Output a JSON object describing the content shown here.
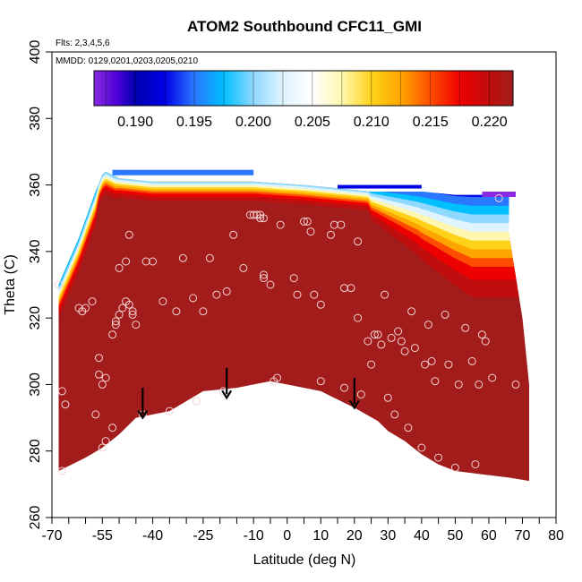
{
  "chart_data": {
    "type": "contour-scatter",
    "title": "ATOM2 Southbound CFC11_GMI",
    "flights_label": "Flts: 2,3,4,5,6",
    "dates_label": "MMDD: 0129,0201,0203,0205,0210",
    "xlabel": "Latitude (deg N)",
    "ylabel": "Theta (C)",
    "xlim": [
      -70,
      80
    ],
    "ylim": [
      260,
      400
    ],
    "x_ticks": [
      -70,
      -55,
      -40,
      -25,
      -10,
      0,
      10,
      20,
      30,
      40,
      50,
      60,
      70,
      80
    ],
    "x_minor_ticks": [
      -65,
      -60,
      -50,
      -45,
      -35,
      -30,
      -20,
      -15,
      -5,
      5,
      15,
      25,
      35,
      45,
      55,
      65,
      75
    ],
    "y_ticks": [
      260,
      280,
      300,
      320,
      340,
      360,
      380,
      400
    ],
    "colorbar": {
      "range": [
        0.1865,
        0.222
      ],
      "ticks": [
        0.19,
        0.195,
        0.2,
        0.205,
        0.21,
        0.215,
        0.22
      ],
      "tick_labels": [
        "0.190",
        "0.195",
        "0.200",
        "0.205",
        "0.210",
        "0.215",
        "0.220"
      ],
      "stops": [
        {
          "v": 0.1865,
          "c": "#8a2be2"
        },
        {
          "v": 0.1885,
          "c": "#4b00d6"
        },
        {
          "v": 0.19,
          "c": "#0000b0"
        },
        {
          "v": 0.1925,
          "c": "#0000e6"
        },
        {
          "v": 0.195,
          "c": "#2a78ff"
        },
        {
          "v": 0.1975,
          "c": "#00bfff"
        },
        {
          "v": 0.2,
          "c": "#8fd8ff"
        },
        {
          "v": 0.2025,
          "c": "#dff4ff"
        },
        {
          "v": 0.205,
          "c": "#ffffff"
        },
        {
          "v": 0.2075,
          "c": "#fff7b0"
        },
        {
          "v": 0.21,
          "c": "#ffd21a"
        },
        {
          "v": 0.2125,
          "c": "#ffa500"
        },
        {
          "v": 0.215,
          "c": "#ff4d00"
        },
        {
          "v": 0.2175,
          "c": "#ee0000"
        },
        {
          "v": 0.22,
          "c": "#c00d0d"
        },
        {
          "v": 0.222,
          "c": "#a21c1c"
        }
      ]
    },
    "field_color": "#a21c1c",
    "field_boundary": {
      "top": [
        [
          -68,
          330
        ],
        [
          -62,
          344
        ],
        [
          -57,
          358
        ],
        [
          -55,
          363
        ],
        [
          -54,
          364
        ],
        [
          -50,
          362
        ],
        [
          -40,
          361
        ],
        [
          -25,
          361
        ],
        [
          -10,
          361
        ],
        [
          5,
          360
        ],
        [
          15,
          359
        ],
        [
          25,
          358
        ],
        [
          40,
          358
        ],
        [
          50,
          357
        ],
        [
          60,
          357
        ],
        [
          68,
          357
        ]
      ],
      "bottom": [
        [
          -68,
          274
        ],
        [
          -60,
          278
        ],
        [
          -55,
          281
        ],
        [
          -50,
          285
        ],
        [
          -45,
          290
        ],
        [
          -35,
          292
        ],
        [
          -25,
          298
        ],
        [
          -15,
          299
        ],
        [
          -10,
          300
        ],
        [
          -5,
          301
        ],
        [
          0,
          300
        ],
        [
          10,
          298
        ],
        [
          20,
          293
        ],
        [
          27,
          289
        ],
        [
          30,
          286
        ],
        [
          35,
          283
        ],
        [
          40,
          279
        ],
        [
          45,
          276
        ],
        [
          50,
          274
        ],
        [
          58,
          273
        ],
        [
          66,
          272
        ],
        [
          72,
          271
        ]
      ]
    },
    "field_right_edge": [
      [
        66,
        357
      ],
      [
        66,
        345
      ],
      [
        70,
        320
      ],
      [
        72,
        300
      ],
      [
        72,
        271
      ]
    ],
    "flight_arrows": [
      {
        "lat": -43,
        "theta_top": 299,
        "theta_tip": 290
      },
      {
        "lat": -18,
        "theta_top": 305,
        "theta_tip": 296
      },
      {
        "lat": 20,
        "theta_top": 302,
        "theta_tip": 293
      }
    ],
    "observations": [
      [
        -68,
        330
      ],
      [
        -67,
        298
      ],
      [
        -66,
        294
      ],
      [
        -67,
        274
      ],
      [
        -62,
        323
      ],
      [
        -61,
        322
      ],
      [
        -60,
        323
      ],
      [
        -58,
        325
      ],
      [
        -57,
        291
      ],
      [
        -56,
        308
      ],
      [
        -56,
        303
      ],
      [
        -55,
        300
      ],
      [
        -54,
        302
      ],
      [
        -55,
        281
      ],
      [
        -54,
        283
      ],
      [
        -52,
        287
      ],
      [
        -52,
        315
      ],
      [
        -51,
        318
      ],
      [
        -51,
        319
      ],
      [
        -50,
        321
      ],
      [
        -50,
        335
      ],
      [
        -49,
        323
      ],
      [
        -48,
        325
      ],
      [
        -47,
        324
      ],
      [
        -46,
        322
      ],
      [
        -48,
        337
      ],
      [
        -47,
        345
      ],
      [
        -46,
        321
      ],
      [
        -45,
        318
      ],
      [
        -43,
        291
      ],
      [
        -42,
        337
      ],
      [
        -40,
        337
      ],
      [
        -37,
        325
      ],
      [
        -35,
        292
      ],
      [
        -33,
        322
      ],
      [
        -31,
        338
      ],
      [
        -28,
        326
      ],
      [
        -27,
        295
      ],
      [
        -25,
        322
      ],
      [
        -23,
        338
      ],
      [
        -21,
        327
      ],
      [
        -19,
        298
      ],
      [
        -18,
        328
      ],
      [
        -16,
        345
      ],
      [
        -13,
        335
      ],
      [
        -11,
        351
      ],
      [
        -10,
        351
      ],
      [
        -9,
        351
      ],
      [
        -8,
        350
      ],
      [
        -8,
        351
      ],
      [
        -7,
        350
      ],
      [
        -7,
        333
      ],
      [
        -7,
        332
      ],
      [
        -5,
        330
      ],
      [
        -4,
        301
      ],
      [
        -3,
        302
      ],
      [
        -2,
        348
      ],
      [
        2,
        332
      ],
      [
        3,
        327
      ],
      [
        5,
        349
      ],
      [
        6,
        349
      ],
      [
        7,
        346
      ],
      [
        8,
        327
      ],
      [
        10,
        301
      ],
      [
        10,
        324
      ],
      [
        13,
        345
      ],
      [
        14,
        348
      ],
      [
        16,
        348
      ],
      [
        17,
        329
      ],
      [
        17,
        299
      ],
      [
        19,
        329
      ],
      [
        21,
        320
      ],
      [
        21,
        343
      ],
      [
        22,
        297
      ],
      [
        24,
        313
      ],
      [
        25,
        306
      ],
      [
        26,
        315
      ],
      [
        27,
        315
      ],
      [
        28,
        312
      ],
      [
        29,
        327
      ],
      [
        30,
        296
      ],
      [
        31,
        314
      ],
      [
        32,
        291
      ],
      [
        33,
        316
      ],
      [
        34,
        313
      ],
      [
        35,
        310
      ],
      [
        36,
        287
      ],
      [
        37,
        322
      ],
      [
        38,
        311
      ],
      [
        40,
        281
      ],
      [
        41,
        306
      ],
      [
        42,
        318
      ],
      [
        43,
        307
      ],
      [
        44,
        301
      ],
      [
        45,
        278
      ],
      [
        47,
        321
      ],
      [
        48,
        306
      ],
      [
        50,
        275
      ],
      [
        51,
        300
      ],
      [
        53,
        317
      ],
      [
        55,
        307
      ],
      [
        56,
        276
      ],
      [
        57,
        300
      ],
      [
        58,
        315
      ],
      [
        59,
        313
      ],
      [
        61,
        302
      ],
      [
        63,
        356
      ],
      [
        68,
        300
      ]
    ]
  }
}
